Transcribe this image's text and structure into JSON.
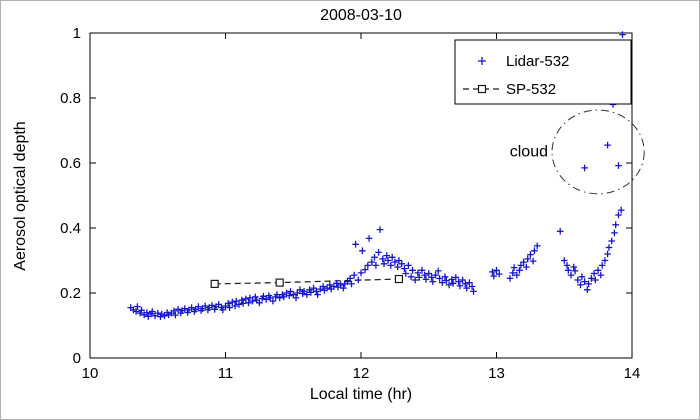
{
  "chart_data": {
    "type": "scatter",
    "title": "2008-03-10",
    "xlabel": "Local time (hr)",
    "ylabel": "Aerosol optical depth",
    "xlim": [
      10,
      14
    ],
    "ylim": [
      0,
      1
    ],
    "xticks": [
      10,
      11,
      12,
      13,
      14
    ],
    "xtick_labels": [
      "10",
      "11",
      "12",
      "13",
      "14"
    ],
    "yticks": [
      0,
      0.2,
      0.4,
      0.6,
      0.8,
      1
    ],
    "ytick_labels": [
      "0",
      "0.2",
      "0.4",
      "0.6",
      "0.8",
      "1"
    ],
    "grid": false,
    "legend_position": "top-right",
    "colors": {
      "axis": "#000000",
      "lidar_blue": "#1515CD",
      "sp_black": "#1a1a1a",
      "background": "#ffffff",
      "annotation": "#333333"
    },
    "series": [
      {
        "name": "Lidar-532",
        "type": "scatter",
        "marker": "plus",
        "color": "#1515CD",
        "points": [
          [
            10.3,
            0.155
          ],
          [
            10.32,
            0.148
          ],
          [
            10.34,
            0.143
          ],
          [
            10.35,
            0.158
          ],
          [
            10.37,
            0.138
          ],
          [
            10.38,
            0.147
          ],
          [
            10.4,
            0.133
          ],
          [
            10.42,
            0.14
          ],
          [
            10.43,
            0.128
          ],
          [
            10.45,
            0.136
          ],
          [
            10.46,
            0.143
          ],
          [
            10.48,
            0.13
          ],
          [
            10.5,
            0.138
          ],
          [
            10.52,
            0.127
          ],
          [
            10.53,
            0.135
          ],
          [
            10.55,
            0.13
          ],
          [
            10.57,
            0.14
          ],
          [
            10.58,
            0.133
          ],
          [
            10.6,
            0.138
          ],
          [
            10.62,
            0.145
          ],
          [
            10.63,
            0.132
          ],
          [
            10.65,
            0.15
          ],
          [
            10.67,
            0.138
          ],
          [
            10.68,
            0.146
          ],
          [
            10.7,
            0.152
          ],
          [
            10.72,
            0.14
          ],
          [
            10.73,
            0.148
          ],
          [
            10.75,
            0.155
          ],
          [
            10.77,
            0.143
          ],
          [
            10.78,
            0.15
          ],
          [
            10.8,
            0.158
          ],
          [
            10.82,
            0.146
          ],
          [
            10.83,
            0.152
          ],
          [
            10.85,
            0.16
          ],
          [
            10.87,
            0.148
          ],
          [
            10.88,
            0.155
          ],
          [
            10.9,
            0.162
          ],
          [
            10.92,
            0.15
          ],
          [
            10.93,
            0.158
          ],
          [
            10.95,
            0.165
          ],
          [
            10.97,
            0.155
          ],
          [
            10.98,
            0.148
          ],
          [
            11.0,
            0.16
          ],
          [
            11.02,
            0.168
          ],
          [
            11.03,
            0.155
          ],
          [
            11.05,
            0.172
          ],
          [
            11.07,
            0.16
          ],
          [
            11.08,
            0.175
          ],
          [
            11.1,
            0.165
          ],
          [
            11.12,
            0.178
          ],
          [
            11.13,
            0.168
          ],
          [
            11.15,
            0.182
          ],
          [
            11.17,
            0.17
          ],
          [
            11.18,
            0.185
          ],
          [
            11.2,
            0.175
          ],
          [
            11.22,
            0.188
          ],
          [
            11.23,
            0.178
          ],
          [
            11.25,
            0.17
          ],
          [
            11.27,
            0.183
          ],
          [
            11.28,
            0.19
          ],
          [
            11.3,
            0.18
          ],
          [
            11.32,
            0.192
          ],
          [
            11.33,
            0.185
          ],
          [
            11.35,
            0.175
          ],
          [
            11.37,
            0.188
          ],
          [
            11.38,
            0.195
          ],
          [
            11.4,
            0.185
          ],
          [
            11.42,
            0.195
          ],
          [
            11.43,
            0.188
          ],
          [
            11.45,
            0.2
          ],
          [
            11.47,
            0.192
          ],
          [
            11.48,
            0.205
          ],
          [
            11.5,
            0.195
          ],
          [
            11.52,
            0.185
          ],
          [
            11.53,
            0.2
          ],
          [
            11.55,
            0.21
          ],
          [
            11.57,
            0.198
          ],
          [
            11.58,
            0.205
          ],
          [
            11.6,
            0.195
          ],
          [
            11.62,
            0.21
          ],
          [
            11.63,
            0.202
          ],
          [
            11.65,
            0.215
          ],
          [
            11.67,
            0.205
          ],
          [
            11.68,
            0.195
          ],
          [
            11.7,
            0.212
          ],
          [
            11.72,
            0.22
          ],
          [
            11.73,
            0.208
          ],
          [
            11.75,
            0.215
          ],
          [
            11.77,
            0.225
          ],
          [
            11.78,
            0.212
          ],
          [
            11.8,
            0.22
          ],
          [
            11.82,
            0.23
          ],
          [
            11.83,
            0.218
          ],
          [
            11.85,
            0.225
          ],
          [
            11.87,
            0.215
          ],
          [
            11.88,
            0.228
          ],
          [
            11.9,
            0.235
          ],
          [
            11.92,
            0.245
          ],
          [
            11.93,
            0.228
          ],
          [
            11.95,
            0.255
          ],
          [
            11.96,
            0.35
          ],
          [
            11.98,
            0.24
          ],
          [
            12.0,
            0.262
          ],
          [
            12.01,
            0.33
          ],
          [
            12.03,
            0.272
          ],
          [
            12.05,
            0.285
          ],
          [
            12.06,
            0.368
          ],
          [
            12.08,
            0.295
          ],
          [
            12.1,
            0.31
          ],
          [
            12.11,
            0.285
          ],
          [
            12.13,
            0.325
          ],
          [
            12.14,
            0.395
          ],
          [
            12.16,
            0.305
          ],
          [
            12.17,
            0.29
          ],
          [
            12.19,
            0.315
          ],
          [
            12.2,
            0.3
          ],
          [
            12.22,
            0.285
          ],
          [
            12.23,
            0.31
          ],
          [
            12.25,
            0.295
          ],
          [
            12.27,
            0.28
          ],
          [
            12.28,
            0.3
          ],
          [
            12.3,
            0.29
          ],
          [
            12.32,
            0.275
          ],
          [
            12.33,
            0.26
          ],
          [
            12.35,
            0.285
          ],
          [
            12.37,
            0.25
          ],
          [
            12.38,
            0.27
          ],
          [
            12.4,
            0.24
          ],
          [
            12.42,
            0.262
          ],
          [
            12.43,
            0.248
          ],
          [
            12.45,
            0.27
          ],
          [
            12.47,
            0.255
          ],
          [
            12.48,
            0.242
          ],
          [
            12.5,
            0.26
          ],
          [
            12.52,
            0.248
          ],
          [
            12.53,
            0.235
          ],
          [
            12.55,
            0.255
          ],
          [
            12.57,
            0.268
          ],
          [
            12.58,
            0.245
          ],
          [
            12.6,
            0.232
          ],
          [
            12.62,
            0.25
          ],
          [
            12.63,
            0.238
          ],
          [
            12.65,
            0.225
          ],
          [
            12.67,
            0.242
          ],
          [
            12.68,
            0.23
          ],
          [
            12.7,
            0.248
          ],
          [
            12.72,
            0.235
          ],
          [
            12.73,
            0.222
          ],
          [
            12.75,
            0.24
          ],
          [
            12.77,
            0.228
          ],
          [
            12.78,
            0.215
          ],
          [
            12.8,
            0.232
          ],
          [
            12.82,
            0.22
          ],
          [
            12.83,
            0.205
          ],
          [
            12.97,
            0.265
          ],
          [
            12.98,
            0.252
          ],
          [
            13.0,
            0.27
          ],
          [
            13.02,
            0.258
          ],
          [
            13.1,
            0.245
          ],
          [
            13.12,
            0.262
          ],
          [
            13.13,
            0.278
          ],
          [
            13.15,
            0.255
          ],
          [
            13.17,
            0.27
          ],
          [
            13.18,
            0.285
          ],
          [
            13.2,
            0.295
          ],
          [
            13.22,
            0.28
          ],
          [
            13.23,
            0.305
          ],
          [
            13.25,
            0.318
          ],
          [
            13.27,
            0.298
          ],
          [
            13.28,
            0.33
          ],
          [
            13.3,
            0.345
          ],
          [
            13.47,
            0.39
          ],
          [
            13.5,
            0.3
          ],
          [
            13.52,
            0.285
          ],
          [
            13.53,
            0.27
          ],
          [
            13.55,
            0.255
          ],
          [
            13.57,
            0.28
          ],
          [
            13.58,
            0.268
          ],
          [
            13.6,
            0.24
          ],
          [
            13.62,
            0.225
          ],
          [
            13.63,
            0.25
          ],
          [
            13.65,
            0.235
          ],
          [
            13.67,
            0.21
          ],
          [
            13.68,
            0.228
          ],
          [
            13.7,
            0.245
          ],
          [
            13.72,
            0.26
          ],
          [
            13.73,
            0.24
          ],
          [
            13.75,
            0.27
          ],
          [
            13.77,
            0.255
          ],
          [
            13.78,
            0.285
          ],
          [
            13.8,
            0.3
          ],
          [
            13.82,
            0.32
          ],
          [
            13.83,
            0.34
          ],
          [
            13.85,
            0.36
          ],
          [
            13.87,
            0.385
          ],
          [
            13.88,
            0.41
          ],
          [
            13.9,
            0.44
          ],
          [
            13.92,
            0.455
          ],
          [
            13.65,
            0.585
          ],
          [
            13.82,
            0.655
          ],
          [
            13.9,
            0.592
          ],
          [
            13.86,
            0.78
          ],
          [
            13.93,
            0.995
          ]
        ]
      },
      {
        "name": "SP-532",
        "type": "line",
        "marker": "square",
        "line_style": "dashed",
        "color": "#1a1a1a",
        "points": [
          [
            10.92,
            0.228
          ],
          [
            11.4,
            0.232
          ],
          [
            12.28,
            0.243
          ]
        ]
      }
    ],
    "annotations": [
      {
        "text": "cloud",
        "text_anchor": [
          13.38,
          0.635
        ],
        "ellipse": {
          "cx": 13.75,
          "cy": 0.634,
          "rx": 0.34,
          "ry": 0.129
        },
        "style": "dashdot"
      }
    ],
    "legend": {
      "items": [
        "Lidar-532",
        "SP-532"
      ]
    }
  }
}
